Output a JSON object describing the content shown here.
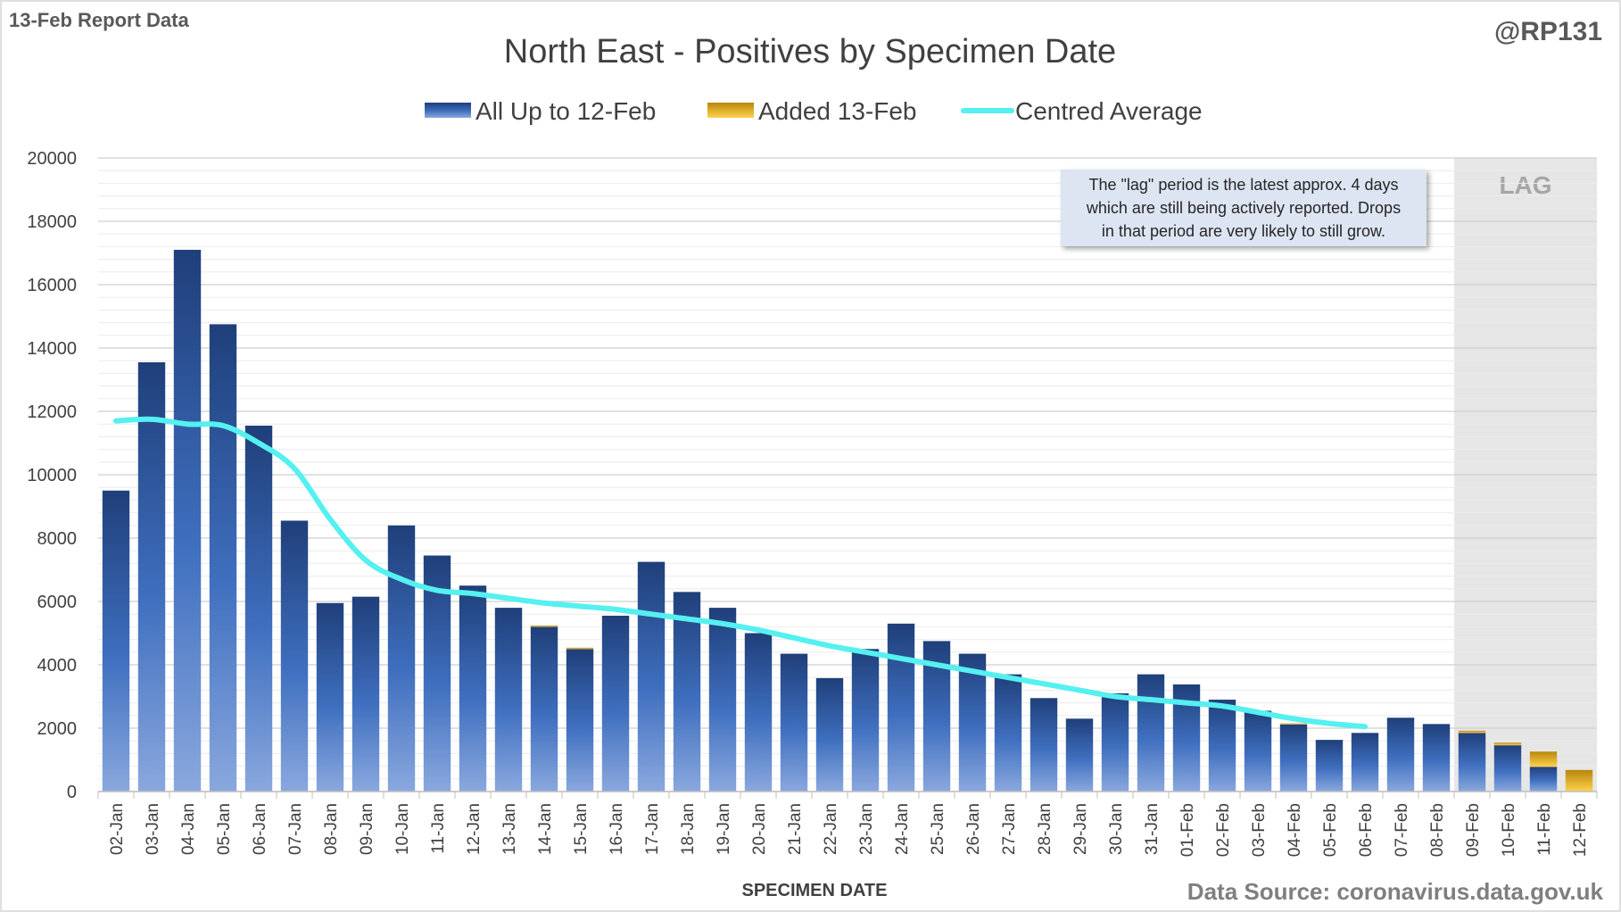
{
  "report_label": "13-Feb Report Data",
  "handle": "@RP131",
  "source_note": "Data Source: coronavirus.data.gov.uk",
  "annotation": {
    "lines": [
      "The \"lag\" period is the latest approx. 4 days",
      "which are still being actively reported.  Drops",
      "in that period are very likely to still grow."
    ]
  },
  "lag_label": "LAG",
  "colors": {
    "bar_primary_top": "#1f3f7a",
    "bar_primary_mid": "#3f6fbf",
    "bar_primary_bottom": "#8aa8de",
    "bar_added_top": "#b8860b",
    "bar_added_bottom": "#ffd34d",
    "average_line": "#55f0f0",
    "lag_shade": "#e6e6e6",
    "annotation_bg": "#dde4f2"
  },
  "chart_data": {
    "type": "bar",
    "title": "North East - Positives by Specimen Date",
    "xlabel": "SPECIMEN DATE",
    "ylabel": "",
    "ylim": [
      0,
      20000
    ],
    "yticks": [
      0,
      2000,
      4000,
      6000,
      8000,
      10000,
      12000,
      14000,
      16000,
      18000,
      20000
    ],
    "grid": true,
    "legend_position": "top-center",
    "stacked": true,
    "categories": [
      "02-Jan",
      "03-Jan",
      "04-Jan",
      "05-Jan",
      "06-Jan",
      "07-Jan",
      "08-Jan",
      "09-Jan",
      "10-Jan",
      "11-Jan",
      "12-Jan",
      "13-Jan",
      "14-Jan",
      "15-Jan",
      "16-Jan",
      "17-Jan",
      "18-Jan",
      "19-Jan",
      "20-Jan",
      "21-Jan",
      "22-Jan",
      "23-Jan",
      "24-Jan",
      "25-Jan",
      "26-Jan",
      "27-Jan",
      "28-Jan",
      "29-Jan",
      "30-Jan",
      "31-Jan",
      "01-Feb",
      "02-Feb",
      "03-Feb",
      "04-Feb",
      "05-Feb",
      "06-Feb",
      "07-Feb",
      "08-Feb",
      "09-Feb",
      "10-Feb",
      "11-Feb",
      "12-Feb"
    ],
    "lag_start_category": "09-Feb",
    "series": [
      {
        "name": "All Up to 12-Feb",
        "type": "bar",
        "values": [
          9500,
          13550,
          17100,
          14750,
          11550,
          8550,
          5950,
          6150,
          8400,
          7450,
          6500,
          5800,
          5200,
          4500,
          5550,
          7250,
          6300,
          5800,
          5000,
          4350,
          3580,
          4500,
          5300,
          4750,
          4350,
          3700,
          2950,
          2300,
          3100,
          3700,
          3380,
          2900,
          2550,
          2120,
          1630,
          1850,
          2330,
          2130,
          1850,
          1460,
          780,
          0
        ]
      },
      {
        "name": "Added 13-Feb",
        "type": "bar",
        "values": [
          0,
          0,
          0,
          0,
          0,
          0,
          0,
          0,
          0,
          0,
          0,
          0,
          40,
          40,
          0,
          0,
          0,
          0,
          0,
          0,
          0,
          0,
          0,
          0,
          0,
          0,
          0,
          0,
          0,
          0,
          0,
          0,
          0,
          30,
          0,
          0,
          0,
          0,
          70,
          80,
          480,
          680
        ]
      },
      {
        "name": "Centred Average",
        "type": "line",
        "values": [
          11700,
          11750,
          11600,
          11550,
          11000,
          10200,
          8600,
          7300,
          6700,
          6350,
          6250,
          6100,
          5950,
          5850,
          5750,
          5600,
          5450,
          5300,
          5100,
          4850,
          4600,
          4400,
          4200,
          4000,
          3800,
          3600,
          3400,
          3200,
          3000,
          2900,
          2800,
          2700,
          2500,
          2300,
          2150,
          2050,
          null,
          null,
          null,
          null,
          null,
          null
        ]
      }
    ]
  }
}
